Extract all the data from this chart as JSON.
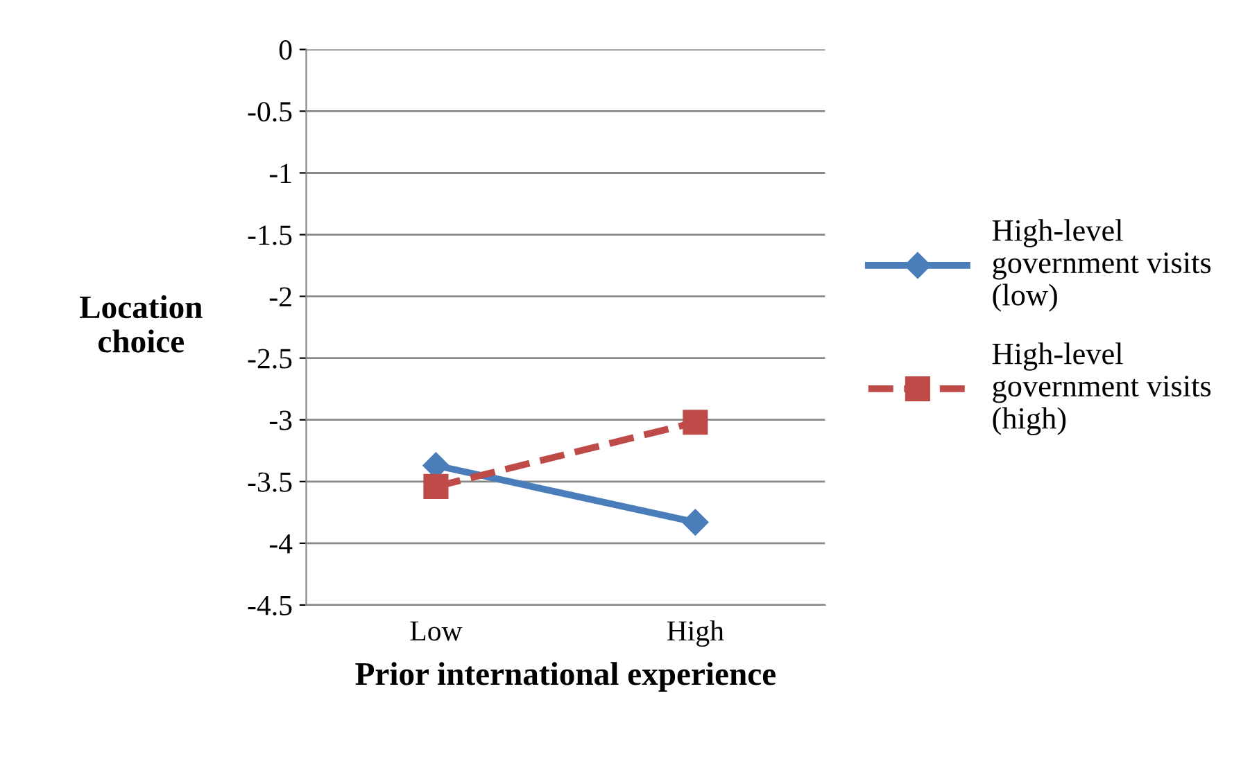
{
  "chart_data": {
    "type": "line",
    "xlabel": "Prior international experience",
    "ylabel": "Location\nchoice",
    "categories": [
      "Low",
      "High"
    ],
    "series": [
      {
        "name": "High-level\ngovernment visits\n(low)",
        "color": "#4a7ebb",
        "values": [
          -3.37,
          -3.83
        ],
        "marker": "diamond",
        "line_style": "solid"
      },
      {
        "name": "High-level\ngovernment visits\n(high)",
        "color": "#be4b48",
        "values": [
          -3.54,
          -3.02
        ],
        "marker": "square",
        "line_style": "dashed"
      }
    ],
    "ylim": [
      -4.5,
      0
    ],
    "yticks": [
      0,
      -0.5,
      -1,
      -1.5,
      -2,
      -2.5,
      -3,
      -3.5,
      -4,
      -4.5
    ],
    "grid": "y",
    "legend": "right"
  }
}
